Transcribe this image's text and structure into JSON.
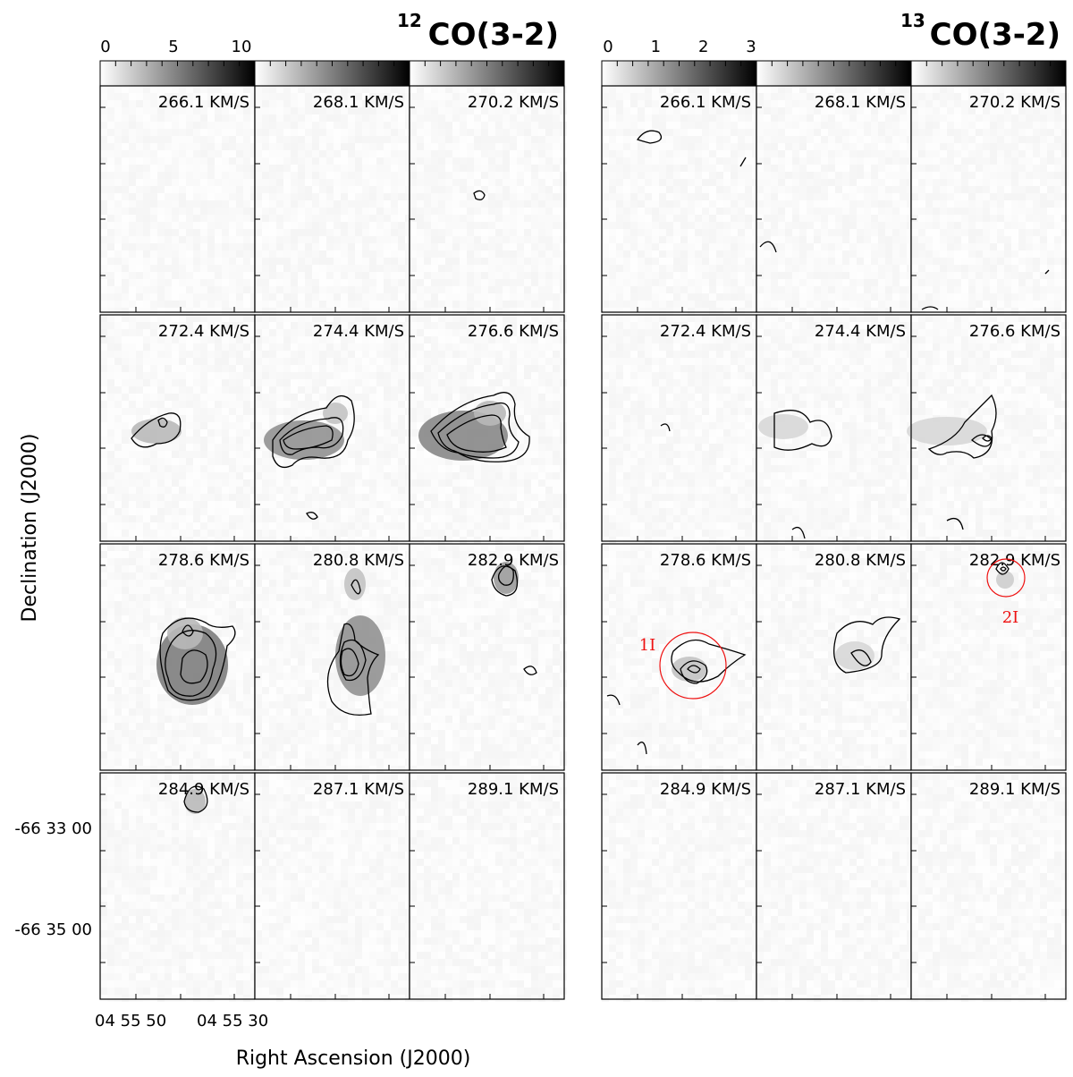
{
  "chart_data": [
    {
      "type": "heatmap",
      "title": "CO(3-2)",
      "title_isotope": "12",
      "xlabel": "Right Ascension (J2000)",
      "ylabel": "Declination (J2000)",
      "x_tick_labels": [
        "04 55 50",
        "04 55 30"
      ],
      "y_tick_labels": [
        "-66 33 00",
        "-66 35 00"
      ],
      "colorbar": {
        "ticks": [
          "0",
          "5",
          "10"
        ],
        "range": [
          0,
          10
        ],
        "colormap": "grayscale"
      },
      "grid": false,
      "panels": [
        "266.1 KM/S",
        "268.1 KM/S",
        "270.2 KM/S",
        "272.4 KM/S",
        "274.4 KM/S",
        "276.6 KM/S",
        "278.6 KM/S",
        "280.8 KM/S",
        "282.9 KM/S",
        "284.9 KM/S",
        "287.1 KM/S",
        "289.1 KM/S"
      ]
    },
    {
      "type": "heatmap",
      "title": "CO(3-2)",
      "title_isotope": "13",
      "colorbar": {
        "ticks": [
          "0",
          "1",
          "2",
          "3"
        ],
        "range": [
          0,
          3
        ],
        "colormap": "grayscale"
      },
      "grid": false,
      "panels": [
        "266.1 KM/S",
        "268.1 KM/S",
        "270.2 KM/S",
        "272.4 KM/S",
        "274.4 KM/S",
        "276.6 KM/S",
        "278.6 KM/S",
        "280.8 KM/S",
        "282.9 KM/S",
        "284.9 KM/S",
        "287.1 KM/S",
        "289.1 KM/S"
      ],
      "annotations": [
        {
          "label": "1I",
          "panel": "278.6 KM/S",
          "color": "#ee1111"
        },
        {
          "label": "2I",
          "panel": "282.9 KM/S",
          "color": "#ee1111"
        }
      ]
    }
  ]
}
